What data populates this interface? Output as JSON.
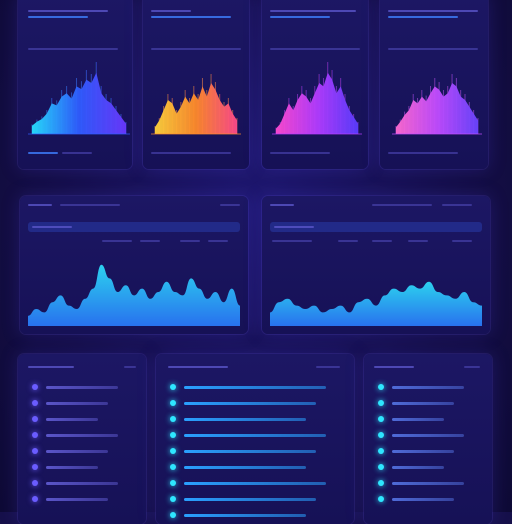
{
  "theme": {
    "bg": "#16104a",
    "accent_cyan": "#2ee6ff",
    "accent_blue": "#3f6bff",
    "accent_magenta": "#e24cff",
    "accent_orange": "#ff8a2a"
  },
  "top_panels": [
    {
      "name": "blue-area-panel",
      "gradient": [
        "#26e0ff",
        "#2f5cff",
        "#6a38ff"
      ],
      "values": [
        0.12,
        0.18,
        0.22,
        0.3,
        0.45,
        0.42,
        0.55,
        0.6,
        0.52,
        0.7,
        0.66,
        0.8,
        0.75,
        0.9,
        0.6,
        0.5,
        0.45,
        0.35,
        0.25,
        0.15
      ]
    },
    {
      "name": "orange-area-panel",
      "gradient": [
        "#ffd23a",
        "#ff8a2a",
        "#ff4a8a"
      ],
      "values": [
        0.1,
        0.2,
        0.35,
        0.5,
        0.45,
        0.3,
        0.4,
        0.55,
        0.45,
        0.6,
        0.5,
        0.7,
        0.55,
        0.75,
        0.65,
        0.5,
        0.4,
        0.45,
        0.3,
        0.2
      ]
    },
    {
      "name": "magenta-area-panel",
      "gradient": [
        "#ff4ad0",
        "#b43cff",
        "#5a3cff"
      ],
      "values": [
        0.08,
        0.15,
        0.3,
        0.45,
        0.35,
        0.5,
        0.6,
        0.55,
        0.45,
        0.6,
        0.75,
        0.7,
        0.9,
        0.8,
        0.6,
        0.7,
        0.5,
        0.35,
        0.25,
        0.15
      ]
    },
    {
      "name": "pink-area-panel",
      "gradient": [
        "#ff6ad0",
        "#c24cff",
        "#6a44ff"
      ],
      "values": [
        0.1,
        0.18,
        0.28,
        0.35,
        0.5,
        0.45,
        0.55,
        0.48,
        0.6,
        0.7,
        0.65,
        0.55,
        0.6,
        0.75,
        0.7,
        0.55,
        0.5,
        0.4,
        0.3,
        0.2
      ]
    }
  ],
  "mid_panels": [
    {
      "name": "wave-panel-left",
      "values": [
        0.15,
        0.25,
        0.2,
        0.35,
        0.45,
        0.3,
        0.25,
        0.4,
        0.55,
        0.9,
        0.7,
        0.5,
        0.6,
        0.45,
        0.55,
        0.4,
        0.5,
        0.65,
        0.5,
        0.45,
        0.7,
        0.55,
        0.4,
        0.5,
        0.35,
        0.55,
        0.3
      ]
    },
    {
      "name": "wave-panel-right",
      "values": [
        0.2,
        0.35,
        0.4,
        0.3,
        0.25,
        0.3,
        0.2,
        0.25,
        0.3,
        0.2,
        0.35,
        0.4,
        0.3,
        0.45,
        0.55,
        0.5,
        0.6,
        0.55,
        0.65,
        0.5,
        0.45,
        0.4,
        0.5,
        0.35,
        0.3
      ]
    }
  ],
  "list_panels": [
    {
      "name": "list-panel-left",
      "rows": 8,
      "dot_color": "#6a5cff",
      "line_color": "#5a55c8"
    },
    {
      "name": "list-panel-center",
      "rows": 9,
      "dot_color": "#2ee6ff",
      "line_color": "#2aa0ff"
    },
    {
      "name": "list-panel-right",
      "rows": 8,
      "dot_color": "#2ee6ff",
      "line_color": "#4f6bd8"
    }
  ]
}
